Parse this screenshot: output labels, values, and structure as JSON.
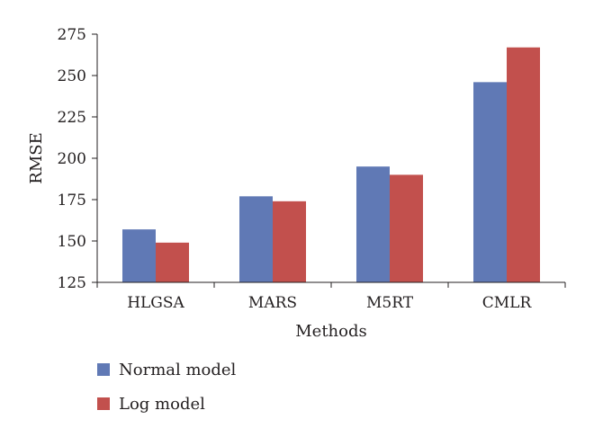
{
  "chart_data": {
    "type": "bar",
    "title": "",
    "xlabel": "Methods",
    "ylabel": "RMSE",
    "categories": [
      "HLGSA",
      "MARS",
      "M5RT",
      "CMLR"
    ],
    "series": [
      {
        "name": "Normal model",
        "color": "#6079b5",
        "values": [
          157,
          177,
          195,
          246
        ]
      },
      {
        "name": "Log model",
        "color": "#c2504d",
        "values": [
          149,
          174,
          190,
          267
        ]
      }
    ],
    "ylim": [
      125,
      275
    ],
    "yticks": [
      "125",
      "150",
      "175",
      "200",
      "225",
      "250",
      "275"
    ],
    "grid": false,
    "legend_position": "bottom-left"
  }
}
